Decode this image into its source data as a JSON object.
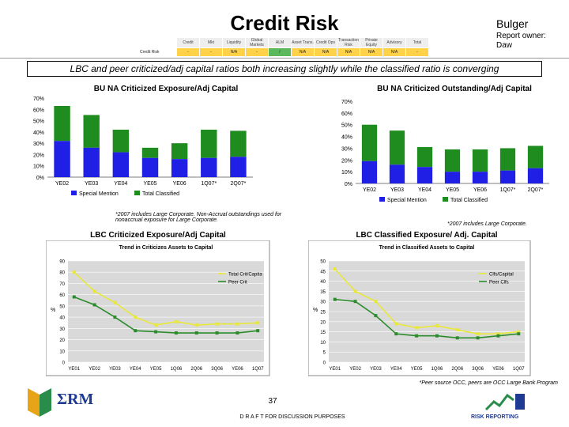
{
  "header": {
    "title": "Credit Risk",
    "owner_name": "Bulger",
    "owner_label": "Report owner:",
    "owner_value": "Daw"
  },
  "risk_table": {
    "headers": [
      "Credit",
      "Mkt",
      "Liquidity",
      "Global Markets",
      "ALM",
      "Asset Trans.",
      "Credit Ops",
      "Transaction Risk",
      "Private Equity",
      "Advisory",
      "Total"
    ],
    "row_label": "Credit Risk",
    "values": [
      "-",
      "-",
      "N/A",
      "-",
      "/",
      "N/A",
      "N/A",
      "N/A",
      "N/A",
      "N/A",
      "-"
    ]
  },
  "banner": {
    "text": "LBC and peer criticized/adj capital ratios both increasing slightly while the classified ratio is converging"
  },
  "colors": {
    "blue": "#1f1fe6",
    "green": "#1e8c1e",
    "yellow": "#e8e83a",
    "darkgreen": "#2c8c2c"
  },
  "chart_data": [
    {
      "type": "bar",
      "title": "BU NA Criticized Exposure/Adj Capital",
      "categories": [
        "YE02",
        "YE03",
        "YE04",
        "YE05",
        "YE06",
        "1Q07*",
        "2Q07*"
      ],
      "series": [
        {
          "name": "Special Mention",
          "values": [
            32,
            26,
            22,
            17,
            16,
            17,
            18
          ]
        },
        {
          "name": "Total Classified",
          "values": [
            63,
            55,
            42,
            26,
            30,
            42,
            41
          ]
        }
      ],
      "yticks": [
        "0%",
        "10%",
        "20%",
        "30%",
        "40%",
        "50%",
        "60%",
        "70%"
      ],
      "ylim": [
        0,
        70
      ],
      "legend": [
        "Special Mention",
        "Total Classified"
      ],
      "footnote": "*2007 includes Large Corporate. Non-Accrual outstandings used for nonaccrual exposure for Large Corporate."
    },
    {
      "type": "bar",
      "title": "BU NA Criticized Outstanding/Adj Capital",
      "categories": [
        "YE02",
        "YE03",
        "YE04",
        "YE05",
        "YE06",
        "1Q07*",
        "2Q07*"
      ],
      "series": [
        {
          "name": "Special Mention",
          "values": [
            19,
            16,
            14,
            10,
            10,
            11,
            13
          ]
        },
        {
          "name": "Total Classified",
          "values": [
            50,
            45,
            31,
            29,
            29,
            30,
            32
          ]
        }
      ],
      "yticks": [
        "0%",
        "10%",
        "20%",
        "30%",
        "40%",
        "50%",
        "60%",
        "70%"
      ],
      "ylim": [
        0,
        70
      ],
      "legend": [
        "Special Mention",
        "Total Classified"
      ],
      "footnote": "*2007 includes Large Corporate."
    },
    {
      "type": "line",
      "title": "LBC Criticized Exposure/Adj Capital",
      "inner_title": "Trend in Criticizes Assets to Capital",
      "x": [
        "YE01",
        "YE02",
        "YE03",
        "YE04",
        "YE05",
        "1Q06",
        "2Q06",
        "3Q06",
        "YE06",
        "1Q07"
      ],
      "series": [
        {
          "name": "Total Crit/Capita",
          "values": [
            80,
            63,
            53,
            40,
            33,
            36,
            33,
            34,
            34,
            35
          ]
        },
        {
          "name": "Peer Crit",
          "values": [
            58,
            51,
            40,
            28,
            27,
            26,
            26,
            26,
            26,
            28
          ]
        }
      ],
      "yticks": [
        "0",
        "10",
        "20",
        "30",
        "40",
        "50",
        "60",
        "70",
        "80",
        "90"
      ],
      "ylim": [
        0,
        90
      ],
      "ylabel": "%"
    },
    {
      "type": "line",
      "title": "LBC Classified Exposure/ Adj. Capital",
      "inner_title": "Trend in Classified Assets to Capital",
      "x": [
        "YE01",
        "YE02",
        "YE03",
        "YE04",
        "YE05",
        "1Q06",
        "2Q06",
        "3Q06",
        "YE06",
        "1Q07"
      ],
      "series": [
        {
          "name": "Clfs/Capital",
          "values": [
            46,
            35,
            30,
            19,
            17,
            18,
            16,
            14,
            14,
            15
          ]
        },
        {
          "name": "Peer Clfs",
          "values": [
            31,
            30,
            23,
            14,
            13,
            13,
            12,
            12,
            13,
            14
          ]
        }
      ],
      "yticks": [
        "0",
        "5",
        "10",
        "15",
        "20",
        "25",
        "30",
        "35",
        "40",
        "45",
        "50"
      ],
      "ylim": [
        0,
        50
      ],
      "ylabel": "%",
      "footnote": "*Peer source OCC, peers are OCC Large Bank Program"
    }
  ],
  "footer": {
    "page_number": "37",
    "draft": "D R A F T  FOR DISCUSSION PURPOSES",
    "logo": "ΣRM",
    "risk_reporting": "RISK REPORTING"
  }
}
